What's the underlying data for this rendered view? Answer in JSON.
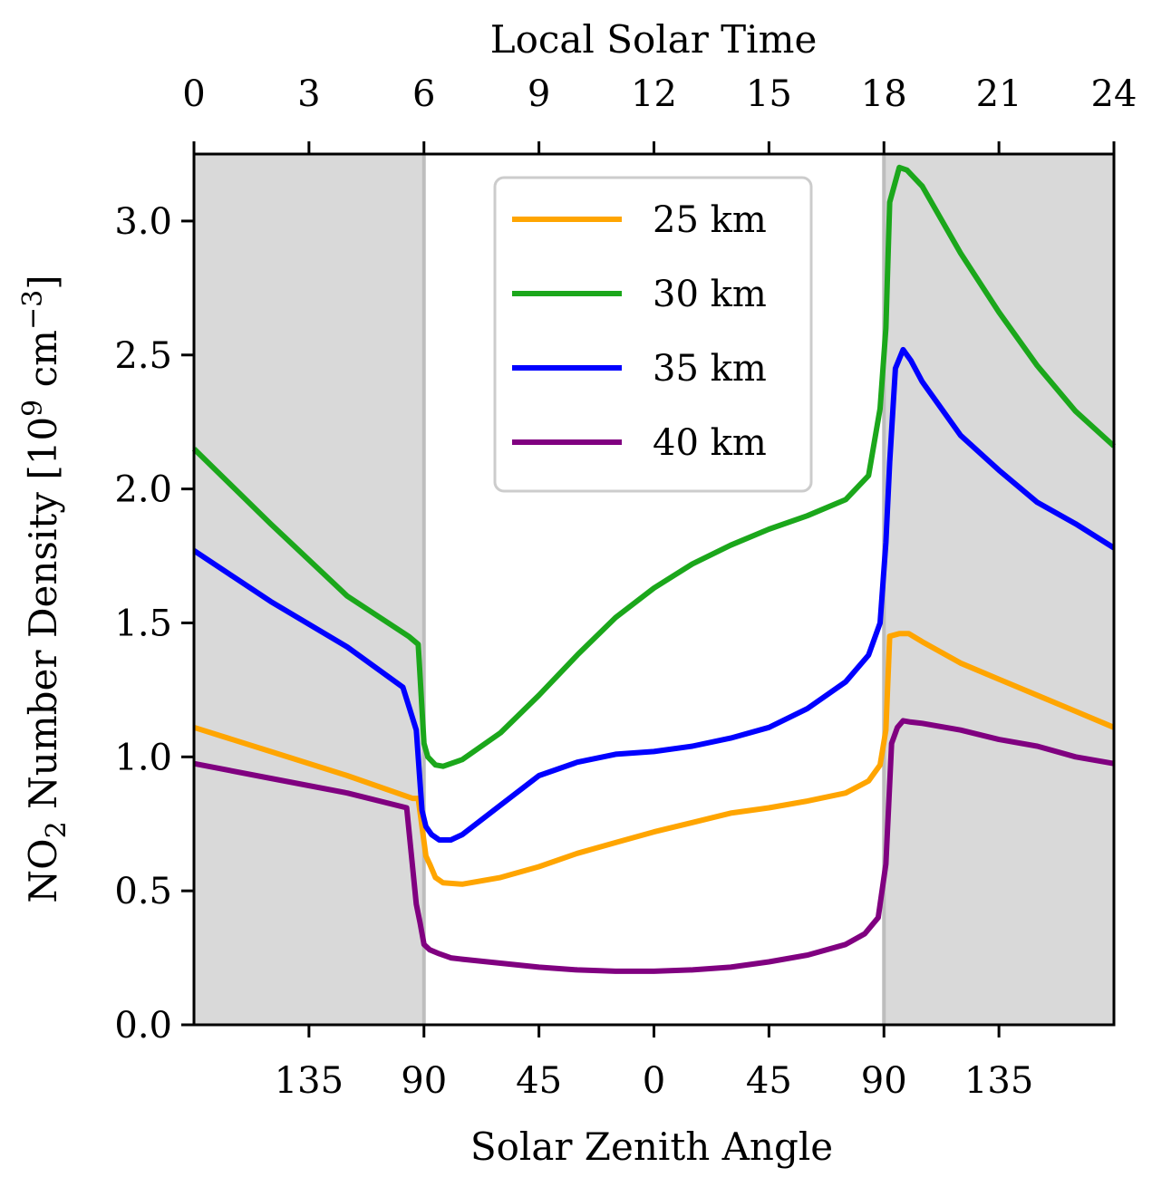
{
  "chart_data": {
    "type": "line",
    "xlabel": "Solar Zenith Angle",
    "x2label": "Local Solar Time",
    "ylabel_main": "NO",
    "ylabel_sub": "2",
    "ylabel_rest": " Number Density [10",
    "ylabel_sup1": "9",
    "ylabel_unit": " cm",
    "ylabel_sup2": "−3",
    "ylabel_close": "]",
    "xlim": [
      0,
      24
    ],
    "ylim": [
      0,
      3.25
    ],
    "yticks": [
      "0.0",
      "0.5",
      "1.0",
      "1.5",
      "2.0",
      "2.5",
      "3.0"
    ],
    "ytick_values": [
      0,
      0.5,
      1.0,
      1.5,
      2.0,
      2.5,
      3.0
    ],
    "top_ticks": [
      "0",
      "3",
      "6",
      "9",
      "12",
      "15",
      "18",
      "21",
      "24"
    ],
    "top_tick_values": [
      0,
      3,
      6,
      9,
      12,
      15,
      18,
      21,
      24
    ],
    "bottom_ticks": [
      "135",
      "90",
      "45",
      "0",
      "45",
      "90",
      "135"
    ],
    "bottom_tick_values": [
      3,
      6,
      9,
      12,
      15,
      18,
      21
    ],
    "night_regions": [
      [
        0,
        6
      ],
      [
        18,
        24
      ]
    ],
    "grid": false,
    "legend_position": "upper-center",
    "series": [
      {
        "name": "25 km",
        "color": "#ffa500",
        "x": [
          0,
          2,
          4,
          5.7,
          5.85,
          6.05,
          6.15,
          6.3,
          6.5,
          7,
          8,
          9,
          10,
          11,
          12,
          13,
          14,
          15,
          16,
          17,
          17.6,
          17.9,
          18.05,
          18.15,
          18.4,
          18.65,
          19,
          20,
          21,
          22,
          23,
          24
        ],
        "y": [
          1.11,
          1.02,
          0.93,
          0.845,
          0.845,
          0.63,
          0.6,
          0.55,
          0.53,
          0.525,
          0.55,
          0.59,
          0.64,
          0.68,
          0.72,
          0.755,
          0.79,
          0.81,
          0.835,
          0.865,
          0.91,
          0.97,
          1.1,
          1.45,
          1.46,
          1.46,
          1.43,
          1.35,
          1.29,
          1.23,
          1.17,
          1.11
        ]
      },
      {
        "name": "30 km",
        "color": "#1ba71b",
        "x": [
          0,
          2,
          4,
          5.6,
          5.85,
          6.0,
          6.1,
          6.3,
          6.5,
          7,
          8,
          9,
          10,
          11,
          12,
          13,
          14,
          15,
          16,
          17,
          17.6,
          17.9,
          18.05,
          18.15,
          18.4,
          18.6,
          19,
          20,
          21,
          22,
          23,
          24
        ],
        "y": [
          2.15,
          1.87,
          1.6,
          1.45,
          1.42,
          1.05,
          1.0,
          0.97,
          0.965,
          0.99,
          1.09,
          1.23,
          1.38,
          1.52,
          1.63,
          1.72,
          1.79,
          1.85,
          1.9,
          1.96,
          2.05,
          2.3,
          2.6,
          3.07,
          3.2,
          3.19,
          3.13,
          2.88,
          2.66,
          2.46,
          2.29,
          2.16
        ]
      },
      {
        "name": "35 km",
        "color": "#0000ff",
        "x": [
          0,
          2,
          4,
          5.45,
          5.8,
          5.95,
          6.05,
          6.2,
          6.4,
          6.7,
          7,
          8,
          9,
          10,
          11,
          12,
          13,
          14,
          15,
          16,
          17,
          17.6,
          17.9,
          18.05,
          18.15,
          18.3,
          18.5,
          18.7,
          19,
          20,
          21,
          22,
          23,
          24
        ],
        "y": [
          1.77,
          1.58,
          1.41,
          1.26,
          1.1,
          0.8,
          0.74,
          0.71,
          0.69,
          0.69,
          0.71,
          0.82,
          0.93,
          0.98,
          1.01,
          1.02,
          1.04,
          1.07,
          1.11,
          1.18,
          1.28,
          1.38,
          1.5,
          1.8,
          2.1,
          2.45,
          2.52,
          2.48,
          2.4,
          2.2,
          2.07,
          1.95,
          1.87,
          1.78
        ]
      },
      {
        "name": "40 km",
        "color": "#800080",
        "x": [
          0,
          2,
          4,
          5.55,
          5.8,
          5.9,
          6.0,
          6.15,
          6.4,
          6.7,
          7,
          8,
          9,
          10,
          11,
          12,
          13,
          14,
          15,
          16,
          17,
          17.5,
          17.85,
          18.05,
          18.2,
          18.35,
          18.5,
          18.7,
          19,
          20,
          21,
          22,
          23,
          24
        ],
        "y": [
          0.975,
          0.92,
          0.865,
          0.81,
          0.45,
          0.38,
          0.3,
          0.28,
          0.265,
          0.25,
          0.245,
          0.23,
          0.215,
          0.205,
          0.2,
          0.2,
          0.205,
          0.215,
          0.235,
          0.26,
          0.3,
          0.34,
          0.4,
          0.6,
          1.05,
          1.11,
          1.135,
          1.13,
          1.125,
          1.1,
          1.065,
          1.04,
          1.0,
          0.975
        ]
      }
    ]
  }
}
